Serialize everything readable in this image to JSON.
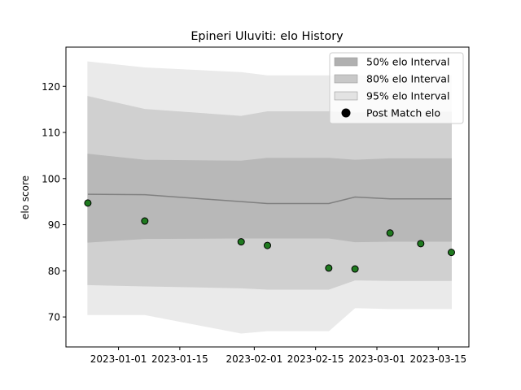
{
  "chart_data": {
    "type": "line",
    "title": "Epineri Uluviti: elo History",
    "xlabel": "",
    "ylabel": "elo score",
    "xlim": [
      "2022-12-20",
      "2023-03-22"
    ],
    "ylim": [
      63.5,
      128.5
    ],
    "x_ticks": [
      "2023-01-01",
      "2023-01-15",
      "2023-02-01",
      "2023-02-15",
      "2023-03-01",
      "2023-03-15"
    ],
    "y_ticks": [
      70,
      80,
      90,
      100,
      110,
      120
    ],
    "grid": false,
    "legend_position": "top-right",
    "x": [
      "2022-12-25",
      "2023-01-07",
      "2023-01-29",
      "2023-02-04",
      "2023-02-18",
      "2023-02-24",
      "2023-03-04",
      "2023-03-11",
      "2023-03-18"
    ],
    "series": [
      {
        "name": "Post Match elo",
        "kind": "points",
        "values": [
          94.7,
          90.8,
          86.3,
          85.5,
          80.6,
          80.4,
          88.2,
          85.9,
          84.0
        ]
      },
      {
        "name": "",
        "kind": "line",
        "values": [
          96.6,
          96.5,
          95.0,
          94.6,
          94.6,
          96.0,
          95.6,
          95.6,
          95.6
        ]
      },
      {
        "name": "50% elo Interval",
        "kind": "band",
        "lower": [
          86.2,
          87.0,
          87.1,
          87.1,
          87.1,
          86.3,
          86.4,
          86.4,
          86.4
        ],
        "upper": [
          105.3,
          104.0,
          103.8,
          104.4,
          104.4,
          104.0,
          104.3,
          104.3,
          104.3
        ]
      },
      {
        "name": "80% elo Interval",
        "kind": "band",
        "lower": [
          77.0,
          76.7,
          76.3,
          76.0,
          76.0,
          78.0,
          77.9,
          77.9,
          77.9
        ],
        "upper": [
          117.8,
          115.0,
          113.5,
          114.5,
          114.5,
          114.2,
          114.4,
          114.4,
          114.4
        ]
      },
      {
        "name": "95% elo Interval",
        "kind": "band",
        "lower": [
          70.5,
          70.5,
          66.5,
          67.0,
          67.0,
          72.0,
          71.8,
          71.8,
          71.8
        ],
        "upper": [
          125.3,
          124.0,
          123.0,
          122.3,
          122.3,
          122.3,
          122.3,
          122.3,
          122.3
        ]
      }
    ],
    "colors": {
      "band_50": "#b0b0b0",
      "band_80": "#c8c8c8",
      "band_95": "#e3e3e3",
      "line": "#808080",
      "point_fill": "#1f7a1f",
      "point_edge": "#000000"
    }
  }
}
